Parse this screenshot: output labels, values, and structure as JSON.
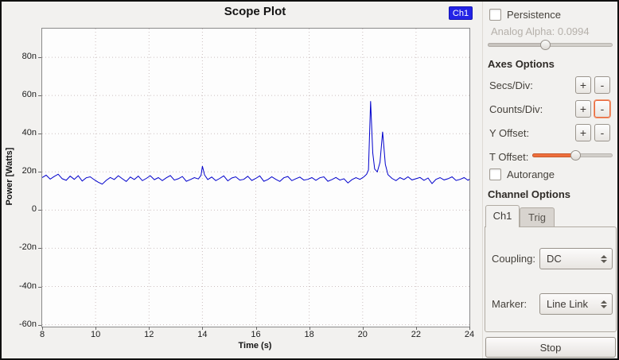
{
  "plot": {
    "title": "Scope Plot",
    "legend_label": "Ch1",
    "xlabel": "Time (s)",
    "ylabel": "Power [Watts]"
  },
  "colors": {
    "curve": "#0000cc",
    "legend_bg": "#2323e6",
    "accent_orange": "#ee6e3c",
    "grid": "#ccc0c0"
  },
  "chart_data": {
    "type": "line",
    "title": "Scope Plot",
    "xlabel": "Time (s)",
    "ylabel": "Power [Watts]",
    "legend_position": "top-right",
    "grid": "dotted",
    "xlim": [
      8,
      24
    ],
    "ylim_nano": [
      -61,
      95
    ],
    "xticks": [
      {
        "v": 8,
        "label": "8"
      },
      {
        "v": 10,
        "label": "10"
      },
      {
        "v": 12,
        "label": "12"
      },
      {
        "v": 14,
        "label": "14"
      },
      {
        "v": 16,
        "label": "16"
      },
      {
        "v": 18,
        "label": "18"
      },
      {
        "v": 20,
        "label": "20"
      },
      {
        "v": 22,
        "label": "22"
      },
      {
        "v": 24,
        "label": "24"
      }
    ],
    "yticks": [
      {
        "v": 80,
        "label": "80n"
      },
      {
        "v": 60,
        "label": "60n"
      },
      {
        "v": 40,
        "label": "40n"
      },
      {
        "v": 20,
        "label": "20n"
      },
      {
        "v": 0,
        "label": "0"
      },
      {
        "v": -20,
        "label": "-20n"
      },
      {
        "v": -40,
        "label": "-40n"
      },
      {
        "v": -60,
        "label": "-60n"
      }
    ],
    "series": [
      {
        "name": "Ch1",
        "color": "#0000cc",
        "y_unit": "nanowatts",
        "points_nano": [
          [
            8,
            17
          ],
          [
            8.15,
            18.3
          ],
          [
            8.3,
            16.2
          ],
          [
            8.45,
            17.6
          ],
          [
            8.6,
            18.8
          ],
          [
            8.75,
            16.4
          ],
          [
            8.9,
            15.6
          ],
          [
            9.05,
            17.8
          ],
          [
            9.2,
            16.1
          ],
          [
            9.35,
            18
          ],
          [
            9.5,
            15.2
          ],
          [
            9.65,
            16.9
          ],
          [
            9.8,
            17.4
          ],
          [
            9.95,
            15.9
          ],
          [
            10.1,
            14.6
          ],
          [
            10.25,
            13.6
          ],
          [
            10.4,
            15.6
          ],
          [
            10.55,
            17.1
          ],
          [
            10.7,
            16
          ],
          [
            10.85,
            18
          ],
          [
            11,
            16.4
          ],
          [
            11.15,
            15
          ],
          [
            11.3,
            17.3
          ],
          [
            11.45,
            16
          ],
          [
            11.6,
            17.8
          ],
          [
            11.75,
            15.4
          ],
          [
            11.9,
            16.6
          ],
          [
            12.05,
            18
          ],
          [
            12.2,
            15.9
          ],
          [
            12.35,
            17
          ],
          [
            12.5,
            15.4
          ],
          [
            12.65,
            16.9
          ],
          [
            12.8,
            18.1
          ],
          [
            12.95,
            15.7
          ],
          [
            13.1,
            16.4
          ],
          [
            13.25,
            17.6
          ],
          [
            13.4,
            15.1
          ],
          [
            13.55,
            16
          ],
          [
            13.7,
            17
          ],
          [
            13.85,
            16.3
          ],
          [
            13.95,
            18.2
          ],
          [
            14,
            23
          ],
          [
            14.08,
            18.4
          ],
          [
            14.2,
            16
          ],
          [
            14.35,
            17.3
          ],
          [
            14.5,
            15.4
          ],
          [
            14.65,
            16.6
          ],
          [
            14.8,
            17.9
          ],
          [
            14.95,
            15.3
          ],
          [
            15.1,
            16.8
          ],
          [
            15.25,
            17.4
          ],
          [
            15.4,
            15.7
          ],
          [
            15.55,
            16.1
          ],
          [
            15.7,
            17.7
          ],
          [
            15.85,
            15.5
          ],
          [
            16,
            16.6
          ],
          [
            16.15,
            17.9
          ],
          [
            16.3,
            15.1
          ],
          [
            16.45,
            16
          ],
          [
            16.6,
            17.4
          ],
          [
            16.75,
            16.1
          ],
          [
            16.9,
            15
          ],
          [
            17.05,
            16.9
          ],
          [
            17.2,
            17.6
          ],
          [
            17.35,
            15.4
          ],
          [
            17.5,
            16.4
          ],
          [
            17.65,
            17.3
          ],
          [
            17.8,
            15.7
          ],
          [
            17.95,
            16.1
          ],
          [
            18.1,
            17
          ],
          [
            18.25,
            15.6
          ],
          [
            18.4,
            16.9
          ],
          [
            18.55,
            17.4
          ],
          [
            18.7,
            15.1
          ],
          [
            18.85,
            16
          ],
          [
            19,
            17.1
          ],
          [
            19.15,
            15.7
          ],
          [
            19.3,
            16.4
          ],
          [
            19.45,
            14.2
          ],
          [
            19.6,
            15.9
          ],
          [
            19.75,
            17
          ],
          [
            19.9,
            16.1
          ],
          [
            20.05,
            17.4
          ],
          [
            20.15,
            18.8
          ],
          [
            20.22,
            21
          ],
          [
            20.3,
            57
          ],
          [
            20.38,
            30
          ],
          [
            20.45,
            21.5
          ],
          [
            20.55,
            20
          ],
          [
            20.65,
            25
          ],
          [
            20.75,
            41
          ],
          [
            20.85,
            24
          ],
          [
            20.95,
            18.6
          ],
          [
            21.1,
            16.6
          ],
          [
            21.25,
            15.4
          ],
          [
            21.4,
            17
          ],
          [
            21.55,
            16
          ],
          [
            21.7,
            17.4
          ],
          [
            21.85,
            15.8
          ],
          [
            22,
            16.4
          ],
          [
            22.15,
            17.1
          ],
          [
            22.3,
            15.6
          ],
          [
            22.45,
            16.8
          ],
          [
            22.6,
            13.9
          ],
          [
            22.75,
            16.1
          ],
          [
            22.9,
            17
          ],
          [
            23.05,
            15.8
          ],
          [
            23.2,
            16.4
          ],
          [
            23.35,
            17.4
          ],
          [
            23.5,
            15.5
          ],
          [
            23.65,
            16.1
          ],
          [
            23.8,
            17
          ],
          [
            23.95,
            15.6
          ],
          [
            24,
            16.2
          ]
        ]
      }
    ]
  },
  "sidebar": {
    "persistence": {
      "label": "Persistence",
      "checked": false
    },
    "analog_alpha": {
      "label": "Analog Alpha: 0.0994",
      "percent": 46,
      "enabled": false
    },
    "axes": {
      "header": "Axes Options",
      "plus": "+",
      "minus": "-",
      "rows": [
        {
          "label": "Secs/Div:"
        },
        {
          "label": "Counts/Div:"
        },
        {
          "label": "Y Offset:"
        }
      ],
      "t_offset": {
        "label": "T Offset:",
        "percent": 53
      }
    },
    "autorange": {
      "label": "Autorange",
      "checked": false
    },
    "channel": {
      "header": "Channel Options",
      "tabs": [
        {
          "label": "Ch1"
        },
        {
          "label": "Trig"
        }
      ],
      "coupling": {
        "label": "Coupling:",
        "value": "DC"
      },
      "marker": {
        "label": "Marker:",
        "value": "Line Link"
      }
    },
    "stop_label": "Stop"
  }
}
